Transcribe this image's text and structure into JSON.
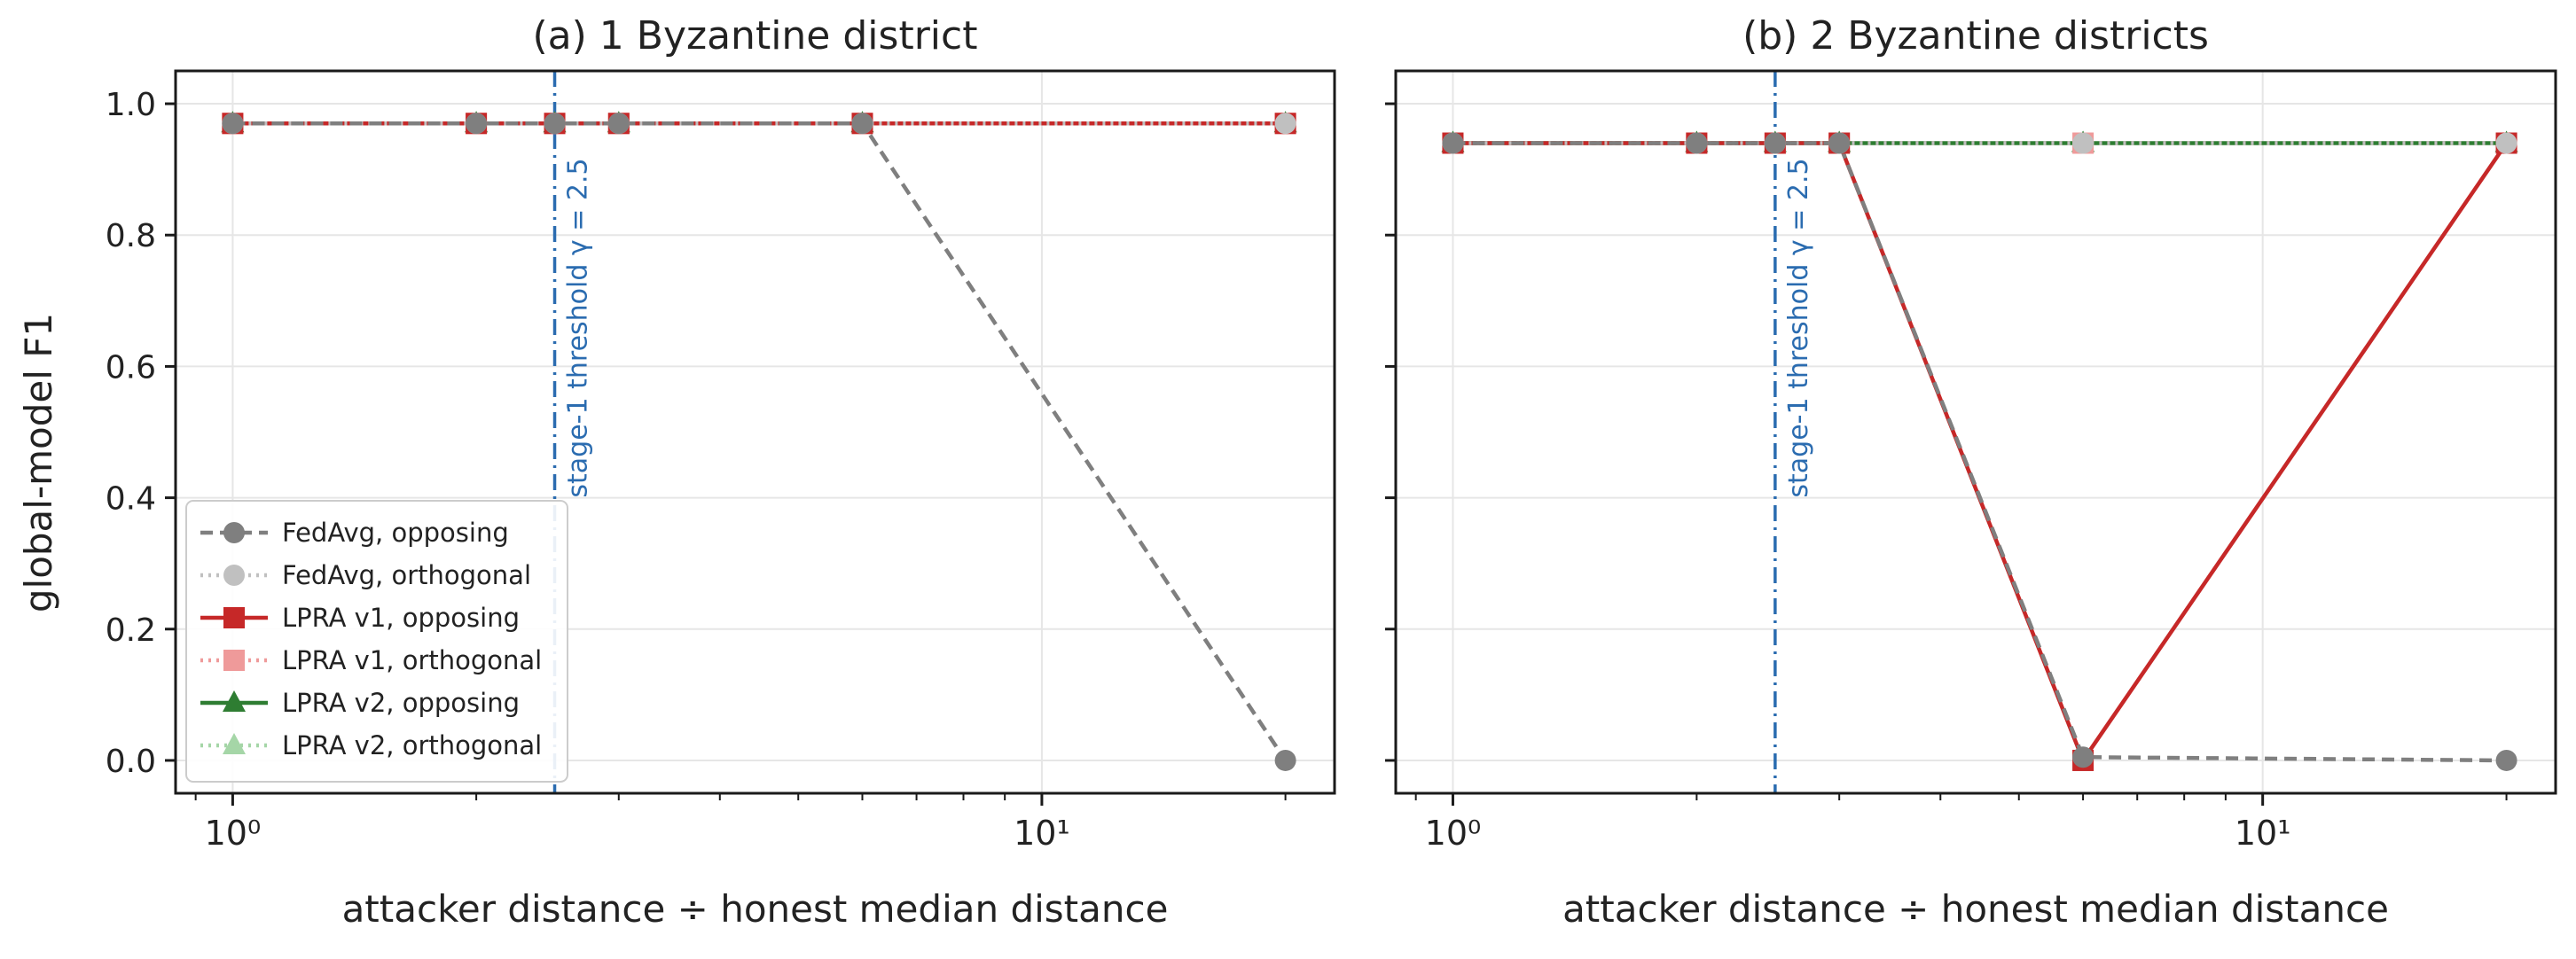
{
  "figure": {
    "ylabel": "global-model F1",
    "xlabel": "attacker distance ÷ honest median distance"
  },
  "colors": {
    "fedavg_opposing": "#7f7f7f",
    "fedavg_orthogonal": "#c0c0c0",
    "lpra_v1_opposing": "#c62828",
    "lpra_v1_orthogonal": "#ef9a9a",
    "lpra_v2_opposing": "#2e7d32",
    "lpra_v2_orthogonal": "#a5d6a7",
    "threshold": "#2b6cb0"
  },
  "chart_data": [
    {
      "type": "line",
      "title": "(a) 1 Byzantine district",
      "xlabel": "attacker distance ÷ honest median distance",
      "ylabel": "global-model F1",
      "xscale": "log",
      "xlim": [
        0.85,
        23
      ],
      "ylim": [
        -0.05,
        1.05
      ],
      "xticks": [
        {
          "value": 1,
          "label": "10⁰"
        },
        {
          "value": 10,
          "label": "10¹"
        }
      ],
      "yticks": [
        "0.0",
        "0.2",
        "0.4",
        "0.6",
        "0.8",
        "1.0"
      ],
      "grid": true,
      "legend": "lower-left",
      "threshold": {
        "x": 2.5,
        "label": "stage-1 threshold γ = 2.5"
      },
      "x": [
        1,
        2,
        2.5,
        3,
        6,
        20
      ],
      "series": [
        {
          "name": "FedAvg, opposing",
          "style": "dashed",
          "marker": "circle",
          "values": [
            0.97,
            0.97,
            0.97,
            0.97,
            0.97,
            0.0
          ]
        },
        {
          "name": "FedAvg, orthogonal",
          "style": "dotted",
          "marker": "circle",
          "values": [
            0.97,
            0.97,
            0.97,
            0.97,
            0.97,
            0.97
          ]
        },
        {
          "name": "LPRA v1, opposing",
          "style": "solid",
          "marker": "square",
          "values": [
            0.97,
            0.97,
            0.97,
            0.97,
            0.97,
            0.97
          ]
        },
        {
          "name": "LPRA v1, orthogonal",
          "style": "dotted",
          "marker": "square",
          "values": [
            0.97,
            0.97,
            0.97,
            0.97,
            0.97,
            0.97
          ]
        },
        {
          "name": "LPRA v2, opposing",
          "style": "solid",
          "marker": "triangle",
          "values": [
            0.97,
            0.97,
            0.97,
            0.97,
            0.97,
            0.97
          ]
        },
        {
          "name": "LPRA v2, orthogonal",
          "style": "dotted",
          "marker": "triangle",
          "values": [
            0.97,
            0.97,
            0.97,
            0.97,
            0.97,
            0.97
          ]
        }
      ]
    },
    {
      "type": "line",
      "title": "(b) 2 Byzantine districts",
      "xlabel": "attacker distance ÷ honest median distance",
      "ylabel": "",
      "xscale": "log",
      "xlim": [
        0.85,
        23
      ],
      "ylim": [
        -0.05,
        1.05
      ],
      "xticks": [
        {
          "value": 1,
          "label": "10⁰"
        },
        {
          "value": 10,
          "label": "10¹"
        }
      ],
      "yticks": [],
      "grid": true,
      "legend": "",
      "threshold": {
        "x": 2.5,
        "label": "stage-1 threshold γ = 2.5"
      },
      "x": [
        1,
        2,
        2.5,
        3,
        6,
        20
      ],
      "series": [
        {
          "name": "FedAvg, opposing",
          "style": "dashed",
          "marker": "circle",
          "values": [
            0.94,
            0.94,
            0.94,
            0.94,
            0.005,
            0.0
          ]
        },
        {
          "name": "FedAvg, orthogonal",
          "style": "dotted",
          "marker": "circle",
          "values": [
            0.94,
            0.94,
            0.94,
            0.94,
            0.94,
            0.94
          ]
        },
        {
          "name": "LPRA v1, opposing",
          "style": "solid",
          "marker": "square",
          "values": [
            0.94,
            0.94,
            0.94,
            0.94,
            0.0,
            0.94
          ]
        },
        {
          "name": "LPRA v1, orthogonal",
          "style": "dotted",
          "marker": "square",
          "values": [
            0.94,
            0.94,
            0.94,
            0.94,
            0.94,
            0.94
          ]
        },
        {
          "name": "LPRA v2, opposing",
          "style": "solid",
          "marker": "triangle",
          "values": [
            0.94,
            0.94,
            0.94,
            0.94,
            0.94,
            0.94
          ]
        },
        {
          "name": "LPRA v2, orthogonal",
          "style": "dotted",
          "marker": "triangle",
          "values": [
            0.94,
            0.94,
            0.94,
            0.94,
            0.94,
            0.94
          ]
        }
      ]
    }
  ]
}
